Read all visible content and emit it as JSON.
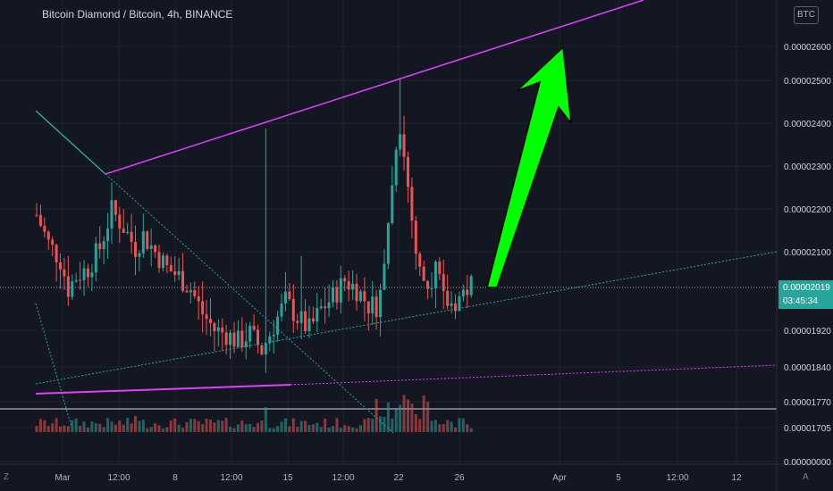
{
  "header": {
    "title": "Bitcoin Diamond / Bitcoin, 4h, BINANCE",
    "currency_badge": "BTC"
  },
  "price_scale": {
    "labels": [
      "0.00002600",
      "0.00002500",
      "0.00002400",
      "0.00002300",
      "0.00002200",
      "0.00002100",
      "0.00001920",
      "0.00001840",
      "0.00001770",
      "0.00001705",
      "0.00000000"
    ],
    "current_price": "0.00002019",
    "countdown": "03:45:34"
  },
  "time_scale": {
    "labels": [
      "Mar",
      "12:00",
      "8",
      "12:00",
      "15",
      "12:00",
      "22",
      "26",
      "Apr",
      "5",
      "12:00",
      "12"
    ]
  },
  "bottom_icons": {
    "left": "Z",
    "right": "A"
  },
  "colors": {
    "background": "#131722",
    "up": "#26a69a",
    "down": "#ef5350",
    "trendline_magenta": "#e040fb",
    "trendline_teal": "#26a69a",
    "arrow": "#00ff00"
  },
  "chart_data": {
    "type": "candlestick",
    "title": "Bitcoin Diamond / Bitcoin, 4h, BINANCE",
    "xlabel": "",
    "ylabel": "",
    "ylim": [
      1.74e-05,
      2.62e-05
    ],
    "last_price": 2.019e-05,
    "annotations": [
      "upward green arrow",
      "ascending magenta resistance line",
      "ascending magenta support line",
      "descending teal trendline",
      "ascending dotted teal trendline"
    ]
  }
}
